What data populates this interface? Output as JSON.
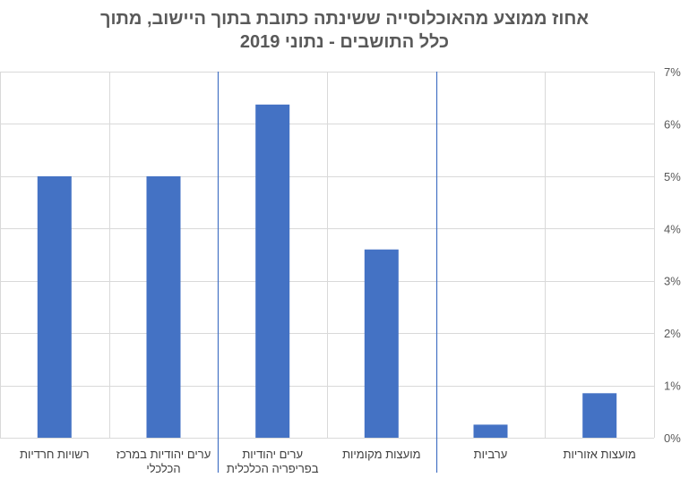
{
  "chart_data": {
    "type": "bar",
    "title_lines": [
      "אחוז ממוצע מהאוכלוסייה ששינתה כתובת בתוך היישוב, מתוך",
      "כלל התושבים - נתוני 2019"
    ],
    "title": "אחוז ממוצע מהאוכלוסייה ששינתה כתובת בתוך היישוב, מתוך כלל התושבים - נתוני 2019",
    "categories": [
      [
        "מועצות אזוריות"
      ],
      [
        "ערביות"
      ],
      [
        "מועצות מקומיות"
      ],
      [
        "ערים יהודיות",
        "בפריפריה הכלכלית"
      ],
      [
        "ערים יהודיות במרכז",
        "הכלכלי"
      ],
      [
        "רשויות חרדיות"
      ]
    ],
    "values": [
      0.0085,
      0.0025,
      0.036,
      0.0637,
      0.05,
      0.05
    ],
    "ylim": [
      0,
      0.07
    ],
    "y_ticks": [
      0,
      0.01,
      0.02,
      0.03,
      0.04,
      0.05,
      0.06,
      0.07
    ],
    "y_tick_labels": [
      "0%",
      "1%",
      "2%",
      "3%",
      "4%",
      "5%",
      "6%",
      "7%"
    ],
    "grid": true,
    "x_axis_direction": "right-to-left",
    "y_axis_side": "right",
    "separator_after_category_index": [
      1,
      3
    ],
    "colors": {
      "bar": "#4472C4",
      "grid": "#D9D9D9",
      "separator": "#4472C4",
      "text": "#595959"
    }
  }
}
